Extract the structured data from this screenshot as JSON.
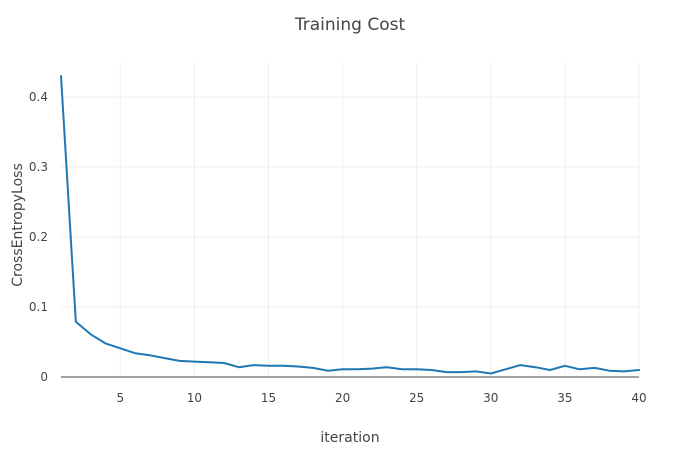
{
  "chart_data": {
    "type": "line",
    "title": "Training Cost",
    "xlabel": "iteration",
    "ylabel": "CrossEntropyLoss",
    "xlim": [
      1,
      40
    ],
    "ylim": [
      0,
      0.45
    ],
    "xticks": [
      5,
      10,
      15,
      20,
      25,
      30,
      35,
      40
    ],
    "yticks": [
      0,
      0.1,
      0.2,
      0.3,
      0.4
    ],
    "ytick_labels": [
      "0",
      "0.1",
      "0.2",
      "0.3",
      "0.4"
    ],
    "grid": true,
    "series": [
      {
        "name": "CrossEntropyLoss",
        "color": "#1f77b4",
        "x": [
          1,
          2,
          3,
          4,
          5,
          6,
          7,
          8,
          9,
          10,
          11,
          12,
          13,
          14,
          15,
          16,
          17,
          18,
          19,
          20,
          21,
          22,
          23,
          24,
          25,
          26,
          27,
          28,
          29,
          30,
          31,
          32,
          33,
          34,
          35,
          36,
          37,
          38,
          39,
          40
        ],
        "values": [
          0.43,
          0.079,
          0.061,
          0.048,
          0.041,
          0.034,
          0.031,
          0.027,
          0.023,
          0.022,
          0.021,
          0.02,
          0.014,
          0.017,
          0.016,
          0.016,
          0.015,
          0.013,
          0.009,
          0.011,
          0.011,
          0.012,
          0.014,
          0.011,
          0.011,
          0.01,
          0.007,
          0.007,
          0.008,
          0.005,
          0.011,
          0.017,
          0.014,
          0.01,
          0.016,
          0.011,
          0.013,
          0.009,
          0.008,
          0.01
        ]
      }
    ]
  }
}
